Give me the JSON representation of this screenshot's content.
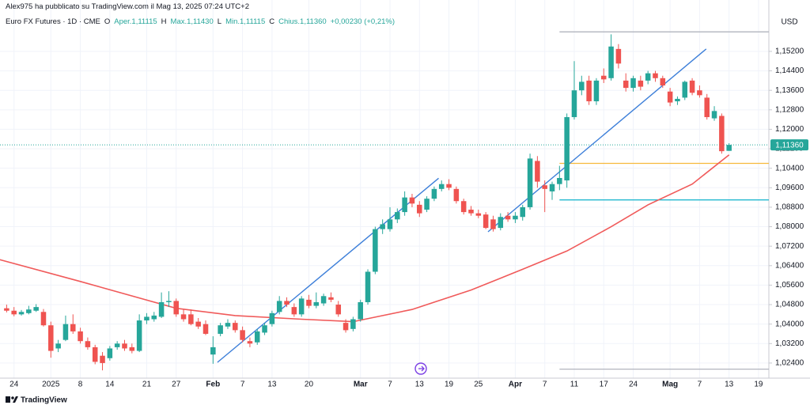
{
  "chart_data": {
    "type": "candlestick",
    "author": "Alex975 ha pubblicato su TradingView.com il Mag 13, 2025 07:24 UTC+2",
    "legend_items": [
      {
        "text": "Euro FX Futures · 1D · CME",
        "color": "#131722"
      },
      {
        "text": "O",
        "color": "#131722"
      },
      {
        "text": "Aper.1,11115",
        "color": "#26a69a"
      },
      {
        "text": "H",
        "color": "#131722"
      },
      {
        "text": "Max.1,11430",
        "color": "#26a69a"
      },
      {
        "text": "L",
        "color": "#131722"
      },
      {
        "text": "Min.1,11115",
        "color": "#26a69a"
      },
      {
        "text": "C",
        "color": "#131722"
      },
      {
        "text": "Chius.1,11360",
        "color": "#26a69a"
      },
      {
        "text": "+0,00230 (+0,21%)",
        "color": "#26a69a"
      }
    ],
    "currency": "USD",
    "brand": "TradingView",
    "up_color": "#26a69a",
    "down_color": "#ef5350",
    "grid": true,
    "xlim": [
      -0.9,
      103.4
    ],
    "ylim": [
      1.0178,
      1.1731
    ],
    "yticks": [
      {
        "value": 1.024,
        "label": "1,02400"
      },
      {
        "value": 1.032,
        "label": "1,03200"
      },
      {
        "value": 1.04,
        "label": "1,04000"
      },
      {
        "value": 1.048,
        "label": "1,04800"
      },
      {
        "value": 1.056,
        "label": "1,05600"
      },
      {
        "value": 1.064,
        "label": "1,06400"
      },
      {
        "value": 1.072,
        "label": "1,07200"
      },
      {
        "value": 1.08,
        "label": "1,08000"
      },
      {
        "value": 1.088,
        "label": "1,08800"
      },
      {
        "value": 1.096,
        "label": "1,09600"
      },
      {
        "value": 1.104,
        "label": "1,10400"
      },
      {
        "value": 1.112,
        "label": "1,11200"
      },
      {
        "value": 1.12,
        "label": "1,12000"
      },
      {
        "value": 1.128,
        "label": "1,12800"
      },
      {
        "value": 1.136,
        "label": "1,13600"
      },
      {
        "value": 1.144,
        "label": "1,14400"
      },
      {
        "value": 1.152,
        "label": "1,15200"
      }
    ],
    "xticks": [
      {
        "value": 1,
        "label": "24"
      },
      {
        "value": 6,
        "label": "2025"
      },
      {
        "value": 10,
        "label": "8"
      },
      {
        "value": 14,
        "label": "14"
      },
      {
        "value": 19,
        "label": "21"
      },
      {
        "value": 23,
        "label": "27"
      },
      {
        "value": 28,
        "label": "Feb"
      },
      {
        "value": 32,
        "label": "7"
      },
      {
        "value": 36,
        "label": "13"
      },
      {
        "value": 41,
        "label": "20"
      },
      {
        "value": 48,
        "label": "Mar"
      },
      {
        "value": 52,
        "label": "7"
      },
      {
        "value": 56,
        "label": "13"
      },
      {
        "value": 60,
        "label": "19"
      },
      {
        "value": 64,
        "label": "25"
      },
      {
        "value": 69,
        "label": "Apr"
      },
      {
        "value": 73,
        "label": "7"
      },
      {
        "value": 77,
        "label": "11"
      },
      {
        "value": 81,
        "label": "17"
      },
      {
        "value": 85,
        "label": "24"
      },
      {
        "value": 90,
        "label": "Mag"
      },
      {
        "value": 94,
        "label": "7"
      },
      {
        "value": 98,
        "label": "13"
      },
      {
        "value": 102,
        "label": "19"
      }
    ],
    "ohlc": [
      [
        1.0465,
        1.048,
        1.0448,
        1.0455
      ],
      [
        1.0455,
        1.047,
        1.0432,
        1.044
      ],
      [
        1.044,
        1.0458,
        1.0435,
        1.045
      ],
      [
        1.0445,
        1.0475,
        1.044,
        1.046
      ],
      [
        1.0455,
        1.0482,
        1.045,
        1.047
      ],
      [
        1.045,
        1.0462,
        1.039,
        1.0395
      ],
      [
        1.0395,
        1.041,
        1.0262,
        1.029
      ],
      [
        1.03,
        1.0335,
        1.0285,
        1.032
      ],
      [
        1.0335,
        1.0435,
        1.033,
        1.04
      ],
      [
        1.04,
        1.044,
        1.036,
        1.037
      ],
      [
        1.037,
        1.0385,
        1.032,
        1.033
      ],
      [
        1.033,
        1.0345,
        1.0295,
        1.0305
      ],
      [
        1.0305,
        1.0315,
        1.0235,
        1.0245
      ],
      [
        1.027,
        1.0285,
        1.021,
        1.024
      ],
      [
        1.026,
        1.031,
        1.025,
        1.03
      ],
      [
        1.0305,
        1.033,
        1.0295,
        1.032
      ],
      [
        1.032,
        1.0335,
        1.029,
        1.03
      ],
      [
        1.0305,
        1.032,
        1.028,
        1.029
      ],
      [
        1.029,
        1.044,
        1.0285,
        1.0415
      ],
      [
        1.0415,
        1.0445,
        1.04,
        1.043
      ],
      [
        1.042,
        1.045,
        1.041,
        1.0435
      ],
      [
        1.043,
        1.053,
        1.0425,
        1.049
      ],
      [
        1.049,
        1.0535,
        1.047,
        1.0495
      ],
      [
        1.0495,
        1.0505,
        1.043,
        1.044
      ],
      [
        1.044,
        1.046,
        1.041,
        1.042
      ],
      [
        1.044,
        1.046,
        1.0395,
        1.04
      ],
      [
        1.041,
        1.0425,
        1.038,
        1.039
      ],
      [
        1.04,
        1.0415,
        1.0355,
        1.036
      ],
      [
        1.0275,
        1.035,
        1.0237,
        1.0305
      ],
      [
        1.036,
        1.0405,
        1.035,
        1.0395
      ],
      [
        1.039,
        1.042,
        1.038,
        1.0405
      ],
      [
        1.0405,
        1.0415,
        1.0365,
        1.0375
      ],
      [
        1.0375,
        1.039,
        1.0325,
        1.0335
      ],
      [
        1.033,
        1.0345,
        1.0305,
        1.032
      ],
      [
        1.0325,
        1.038,
        1.0315,
        1.037
      ],
      [
        1.0365,
        1.0405,
        1.0355,
        1.0395
      ],
      [
        1.04,
        1.0455,
        1.039,
        1.0445
      ],
      [
        1.045,
        1.0515,
        1.044,
        1.0495
      ],
      [
        1.0495,
        1.051,
        1.047,
        1.048
      ],
      [
        1.047,
        1.0485,
        1.043,
        1.044
      ],
      [
        1.044,
        1.0515,
        1.043,
        1.0505
      ],
      [
        1.05,
        1.052,
        1.0465,
        1.0475
      ],
      [
        1.0475,
        1.053,
        1.0465,
        1.049
      ],
      [
        1.0485,
        1.0525,
        1.0475,
        1.0515
      ],
      [
        1.051,
        1.053,
        1.049,
        1.05
      ],
      [
        1.048,
        1.0495,
        1.043,
        1.044
      ],
      [
        1.0405,
        1.042,
        1.0365,
        1.0375
      ],
      [
        1.038,
        1.043,
        1.037,
        1.042
      ],
      [
        1.042,
        1.05,
        1.041,
        1.049
      ],
      [
        1.049,
        1.0625,
        1.048,
        1.0615
      ],
      [
        1.0615,
        1.08,
        1.0605,
        1.079
      ],
      [
        1.079,
        1.083,
        1.077,
        1.081
      ],
      [
        1.079,
        1.088,
        1.078,
        1.083
      ],
      [
        1.083,
        1.0875,
        1.0815,
        1.086
      ],
      [
        1.086,
        1.0945,
        1.0845,
        1.092
      ],
      [
        1.092,
        1.0935,
        1.088,
        1.0895
      ],
      [
        1.089,
        1.0905,
        1.084,
        1.0855
      ],
      [
        1.087,
        1.0925,
        1.086,
        1.0915
      ],
      [
        1.0915,
        1.0965,
        1.0905,
        1.0955
      ],
      [
        1.0955,
        1.099,
        1.0945,
        1.0975
      ],
      [
        1.0975,
        1.0995,
        1.095,
        1.096
      ],
      [
        1.0955,
        1.0965,
        1.0895,
        1.0905
      ],
      [
        1.0905,
        1.0915,
        1.085,
        1.086
      ],
      [
        1.087,
        1.0885,
        1.0845,
        1.0855
      ],
      [
        1.0855,
        1.087,
        1.0835,
        1.0845
      ],
      [
        1.085,
        1.086,
        1.079,
        1.0795
      ],
      [
        1.083,
        1.0845,
        1.078,
        1.079
      ],
      [
        1.0795,
        1.0855,
        1.0785,
        1.084
      ],
      [
        1.0845,
        1.086,
        1.082,
        1.083
      ],
      [
        1.083,
        1.086,
        1.0815,
        1.0845
      ],
      [
        1.084,
        1.089,
        1.0825,
        1.088
      ],
      [
        1.088,
        1.11,
        1.087,
        1.108
      ],
      [
        1.107,
        1.109,
        1.096,
        1.0985
      ],
      [
        1.097,
        1.099,
        1.086,
        1.0955
      ],
      [
        1.0945,
        1.0985,
        1.091,
        1.0975
      ],
      [
        1.0975,
        1.105,
        1.095,
        1.1
      ],
      [
        1.099,
        1.1265,
        1.096,
        1.125
      ],
      [
        1.125,
        1.148,
        1.124,
        1.136
      ],
      [
        1.136,
        1.142,
        1.134,
        1.1395
      ],
      [
        1.14,
        1.142,
        1.13,
        1.1315
      ],
      [
        1.1315,
        1.141,
        1.13,
        1.14
      ],
      [
        1.142,
        1.145,
        1.139,
        1.1405
      ],
      [
        1.141,
        1.159,
        1.14,
        1.154
      ],
      [
        1.153,
        1.155,
        1.145,
        1.147
      ],
      [
        1.14,
        1.143,
        1.1355,
        1.137
      ],
      [
        1.137,
        1.142,
        1.1355,
        1.141
      ],
      [
        1.14,
        1.142,
        1.136,
        1.1375
      ],
      [
        1.14,
        1.144,
        1.1385,
        1.143
      ],
      [
        1.143,
        1.144,
        1.1395,
        1.141
      ],
      [
        1.141,
        1.142,
        1.137,
        1.138
      ],
      [
        1.1355,
        1.137,
        1.1295,
        1.131
      ],
      [
        1.1315,
        1.1335,
        1.13,
        1.1325
      ],
      [
        1.133,
        1.14,
        1.132,
        1.1395
      ],
      [
        1.14,
        1.141,
        1.134,
        1.135
      ],
      [
        1.136,
        1.138,
        1.133,
        1.134
      ],
      [
        1.133,
        1.1345,
        1.124,
        1.125
      ],
      [
        1.1245,
        1.1295,
        1.1235,
        1.1275
      ],
      [
        1.1255,
        1.1265,
        1.11,
        1.111
      ],
      [
        1.11115,
        1.1143,
        1.11115,
        1.1136
      ]
    ],
    "ma": {
      "color": "#f05a5a",
      "x": [
        -1,
        10,
        23,
        31,
        40,
        47,
        55,
        63,
        70,
        76,
        82,
        87,
        93,
        98
      ],
      "values": [
        1.0665,
        1.0575,
        1.0465,
        1.0435,
        1.042,
        1.041,
        1.046,
        1.054,
        1.0625,
        1.07,
        1.08,
        1.089,
        1.0975,
        1.1095
      ]
    },
    "trend_lines": [
      {
        "color": "#3d7fd9",
        "x": [
          28.6,
          58.6
        ],
        "values": [
          1.0243,
          1.0999
        ]
      },
      {
        "color": "#3d7fd9",
        "x": [
          65.3,
          94.9
        ],
        "values": [
          1.0779,
          1.153
        ]
      }
    ],
    "hlines": [
      {
        "color": "#b2b5be",
        "x_start": 75,
        "value": 1.16
      },
      {
        "color": "#f6b93b",
        "x_start": 75,
        "value": 1.106
      },
      {
        "color": "#22b8cf",
        "x_start": 75,
        "value": 1.091
      },
      {
        "color": "#b2b5be",
        "x_start": 75,
        "value": 1.0215
      }
    ],
    "last_price": {
      "value": 1.1136,
      "label": "1,11360",
      "color": "#26a69a"
    }
  }
}
